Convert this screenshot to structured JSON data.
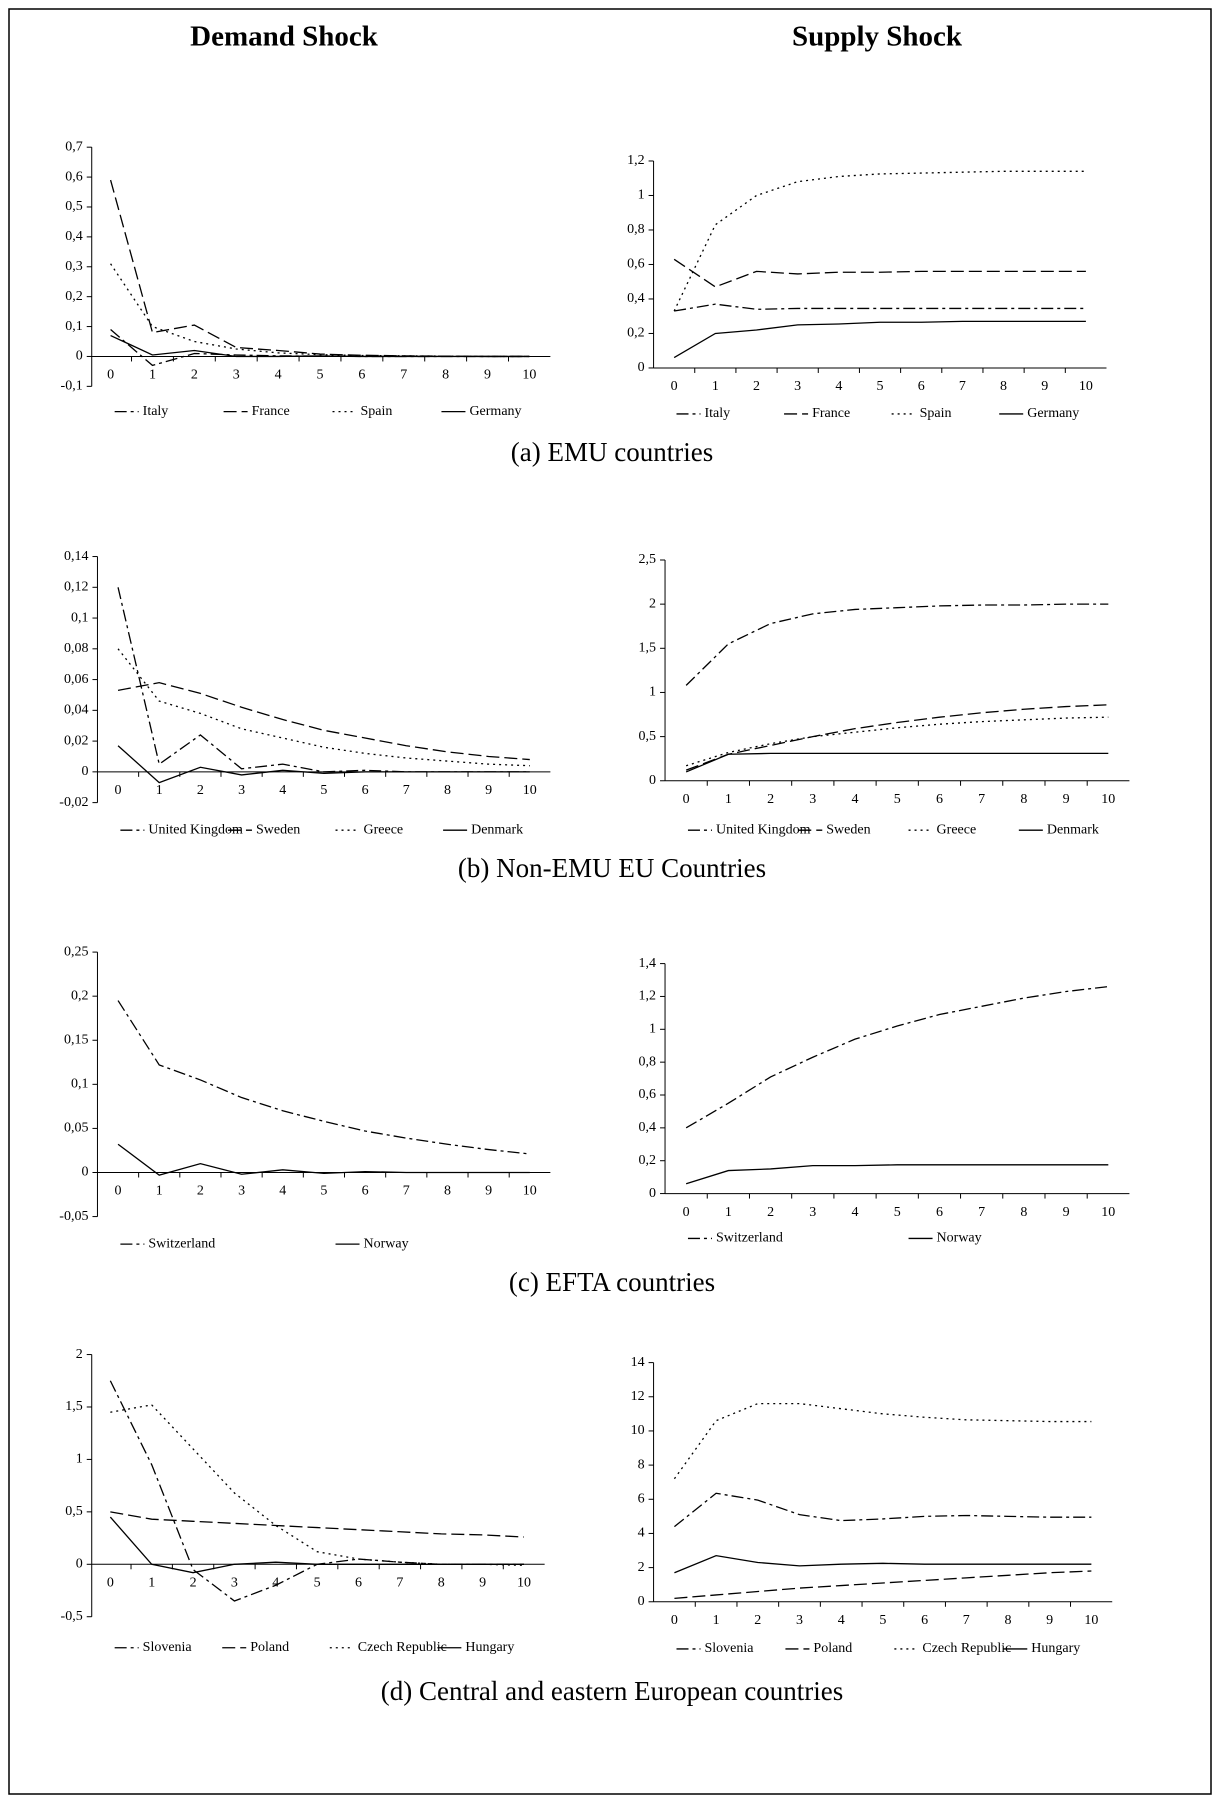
{
  "headers": [
    "Demand Shock",
    "Supply Shock"
  ],
  "captions": [
    "(a) EMU countries",
    "(b) Non-EMU EU Countries",
    "(c) EFTA countries",
    "(d) Central and eastern European countries"
  ],
  "chart_data": [
    {
      "type": "line",
      "x": [
        0,
        1,
        2,
        3,
        4,
        5,
        6,
        7,
        8,
        9,
        10
      ],
      "xlim": [
        -0.45,
        10.5
      ],
      "xticks": [
        0,
        1,
        2,
        3,
        4,
        5,
        6,
        7,
        8,
        9,
        10
      ],
      "ylim": [
        -0.1,
        0.7
      ],
      "yticks": [
        {
          "value": -0.1,
          "label": "-0,1"
        },
        0,
        {
          "value": 0.1,
          "label": "0,1"
        },
        {
          "value": 0.2,
          "label": "0,2"
        },
        {
          "value": 0.3,
          "label": "0,3"
        },
        {
          "value": 0.4,
          "label": "0,4"
        },
        {
          "value": 0.5,
          "label": "0,5"
        },
        {
          "value": 0.6,
          "label": "0,6"
        },
        {
          "value": 0.7,
          "label": "0,7"
        }
      ],
      "series": [
        {
          "name": "Italy",
          "color": "#000000",
          "style": "dash-dot",
          "values": [
            0.09,
            -0.03,
            0.01,
            0.005,
            0.002,
            0.001,
            0,
            0,
            0,
            0,
            0
          ]
        },
        {
          "name": "France",
          "color": "#000000",
          "style": "dashed",
          "values": [
            0.59,
            0.08,
            0.105,
            0.03,
            0.02,
            0.008,
            0.004,
            0.002,
            0.001,
            0,
            0
          ]
        },
        {
          "name": "Spain",
          "color": "#000000",
          "style": "dotted",
          "values": [
            0.31,
            0.1,
            0.05,
            0.025,
            0.012,
            0.006,
            0.003,
            0.002,
            0.001,
            0,
            0
          ]
        },
        {
          "name": "Germany",
          "color": "#000000",
          "style": "solid",
          "values": [
            0.07,
            0.005,
            0.02,
            0.0,
            0.0,
            0.002,
            0,
            0,
            0,
            0,
            0
          ]
        }
      ]
    },
    {
      "type": "line",
      "x": [
        0,
        1,
        2,
        3,
        4,
        5,
        6,
        7,
        8,
        9,
        10
      ],
      "xlim": [
        -0.5,
        10.5
      ],
      "xticks": [
        0,
        1,
        2,
        3,
        4,
        5,
        6,
        7,
        8,
        9,
        10
      ],
      "ylim": [
        0,
        1.2
      ],
      "yticks": [
        0,
        {
          "value": 0.2,
          "label": "0,2"
        },
        {
          "value": 0.4,
          "label": "0,4"
        },
        {
          "value": 0.6,
          "label": "0,6"
        },
        {
          "value": 0.8,
          "label": "0,8"
        },
        1,
        {
          "value": 1.2,
          "label": "1,2"
        }
      ],
      "series": [
        {
          "name": "Italy",
          "color": "#000000",
          "style": "dash-dot",
          "values": [
            0.33,
            0.37,
            0.34,
            0.345,
            0.345,
            0.345,
            0.345,
            0.345,
            0.345,
            0.345,
            0.345
          ]
        },
        {
          "name": "France",
          "color": "#000000",
          "style": "dashed",
          "values": [
            0.63,
            0.47,
            0.56,
            0.545,
            0.555,
            0.555,
            0.56,
            0.56,
            0.56,
            0.56,
            0.56
          ]
        },
        {
          "name": "Spain",
          "color": "#000000",
          "style": "dotted",
          "values": [
            0.33,
            0.83,
            1.0,
            1.08,
            1.11,
            1.125,
            1.13,
            1.135,
            1.14,
            1.14,
            1.14
          ]
        },
        {
          "name": "Germany",
          "color": "#000000",
          "style": "solid",
          "values": [
            0.06,
            0.2,
            0.22,
            0.25,
            0.255,
            0.265,
            0.265,
            0.27,
            0.27,
            0.27,
            0.27
          ]
        }
      ]
    },
    {
      "type": "line",
      "x": [
        0,
        1,
        2,
        3,
        4,
        5,
        6,
        7,
        8,
        9,
        10
      ],
      "xlim": [
        -0.5,
        10.5
      ],
      "xticks": [
        0,
        1,
        2,
        3,
        4,
        5,
        6,
        7,
        8,
        9,
        10
      ],
      "ylim": [
        -0.02,
        0.14
      ],
      "yticks": [
        {
          "value": -0.02,
          "label": "-0,02"
        },
        0,
        {
          "value": 0.02,
          "label": "0,02"
        },
        {
          "value": 0.04,
          "label": "0,04"
        },
        {
          "value": 0.06,
          "label": "0,06"
        },
        {
          "value": 0.08,
          "label": "0,08"
        },
        {
          "value": 0.1,
          "label": "0,1"
        },
        {
          "value": 0.12,
          "label": "0,12"
        },
        {
          "value": 0.14,
          "label": "0,14"
        }
      ],
      "series": [
        {
          "name": "United Kingdom",
          "color": "#000000",
          "style": "dash-dot",
          "values": [
            0.12,
            0.005,
            0.024,
            0.002,
            0.005,
            0.0,
            0.001,
            0,
            0,
            0,
            0
          ]
        },
        {
          "name": "Sweden",
          "color": "#000000",
          "style": "dashed",
          "values": [
            0.053,
            0.058,
            0.051,
            0.042,
            0.034,
            0.027,
            0.022,
            0.017,
            0.013,
            0.01,
            0.008
          ]
        },
        {
          "name": "Greece",
          "color": "#000000",
          "style": "dotted",
          "values": [
            0.08,
            0.046,
            0.038,
            0.028,
            0.022,
            0.016,
            0.012,
            0.009,
            0.007,
            0.005,
            0.004
          ]
        },
        {
          "name": "Denmark",
          "color": "#000000",
          "style": "solid",
          "values": [
            0.017,
            -0.007,
            0.003,
            -0.002,
            0.001,
            -0.001,
            0,
            0,
            0,
            0,
            0
          ]
        }
      ]
    },
    {
      "type": "line",
      "x": [
        0,
        1,
        2,
        3,
        4,
        5,
        6,
        7,
        8,
        9,
        10
      ],
      "xlim": [
        -0.5,
        10.5
      ],
      "xticks": [
        0,
        1,
        2,
        3,
        4,
        5,
        6,
        7,
        8,
        9,
        10
      ],
      "ylim": [
        0,
        2.5
      ],
      "yticks": [
        0,
        {
          "value": 0.5,
          "label": "0,5"
        },
        1,
        {
          "value": 1.5,
          "label": "1,5"
        },
        2,
        {
          "value": 2.5,
          "label": "2,5"
        }
      ],
      "series": [
        {
          "name": "United Kingdom",
          "color": "#000000",
          "style": "dash-dot",
          "values": [
            1.08,
            1.55,
            1.78,
            1.89,
            1.94,
            1.96,
            1.98,
            1.99,
            1.99,
            2.0,
            2.0
          ]
        },
        {
          "name": "Sweden",
          "color": "#000000",
          "style": "dashed",
          "values": [
            0.12,
            0.3,
            0.4,
            0.5,
            0.59,
            0.66,
            0.72,
            0.77,
            0.81,
            0.84,
            0.86
          ]
        },
        {
          "name": "Greece",
          "color": "#000000",
          "style": "dotted",
          "values": [
            0.17,
            0.32,
            0.42,
            0.5,
            0.55,
            0.6,
            0.64,
            0.67,
            0.69,
            0.71,
            0.72
          ]
        },
        {
          "name": "Denmark",
          "color": "#000000",
          "style": "solid",
          "values": [
            0.1,
            0.3,
            0.31,
            0.31,
            0.31,
            0.31,
            0.31,
            0.31,
            0.31,
            0.31,
            0.31
          ]
        }
      ]
    },
    {
      "type": "line",
      "x": [
        0,
        1,
        2,
        3,
        4,
        5,
        6,
        7,
        8,
        9,
        10
      ],
      "xlim": [
        -0.5,
        10.5
      ],
      "xticks": [
        0,
        1,
        2,
        3,
        4,
        5,
        6,
        7,
        8,
        9,
        10
      ],
      "ylim": [
        -0.05,
        0.25
      ],
      "yticks": [
        {
          "value": -0.05,
          "label": "-0,05"
        },
        0,
        {
          "value": 0.05,
          "label": "0,05"
        },
        {
          "value": 0.1,
          "label": "0,1"
        },
        {
          "value": 0.15,
          "label": "0,15"
        },
        {
          "value": 0.2,
          "label": "0,2"
        },
        {
          "value": 0.25,
          "label": "0,25"
        }
      ],
      "series": [
        {
          "name": "Switzerland",
          "color": "#000000",
          "style": "dash-dot",
          "values": [
            0.195,
            0.122,
            0.105,
            0.085,
            0.07,
            0.058,
            0.047,
            0.039,
            0.032,
            0.026,
            0.021
          ]
        },
        {
          "name": "Norway",
          "color": "#000000",
          "style": "solid",
          "values": [
            0.032,
            -0.003,
            0.01,
            -0.002,
            0.003,
            -0.001,
            0.001,
            0,
            0,
            0,
            0
          ]
        }
      ]
    },
    {
      "type": "line",
      "x": [
        0,
        1,
        2,
        3,
        4,
        5,
        6,
        7,
        8,
        9,
        10
      ],
      "xlim": [
        -0.5,
        10.5
      ],
      "xticks": [
        0,
        1,
        2,
        3,
        4,
        5,
        6,
        7,
        8,
        9,
        10
      ],
      "ylim": [
        0,
        1.4
      ],
      "yticks": [
        0,
        {
          "value": 0.2,
          "label": "0,2"
        },
        {
          "value": 0.4,
          "label": "0,4"
        },
        {
          "value": 0.6,
          "label": "0,6"
        },
        {
          "value": 0.8,
          "label": "0,8"
        },
        1,
        {
          "value": 1.2,
          "label": "1,2"
        },
        {
          "value": 1.4,
          "label": "1,4"
        }
      ],
      "series": [
        {
          "name": "Switzerland",
          "color": "#000000",
          "style": "dash-dot",
          "values": [
            0.4,
            0.55,
            0.71,
            0.83,
            0.94,
            1.02,
            1.09,
            1.14,
            1.19,
            1.23,
            1.26
          ]
        },
        {
          "name": "Norway",
          "color": "#000000",
          "style": "solid",
          "values": [
            0.06,
            0.14,
            0.15,
            0.17,
            0.17,
            0.175,
            0.175,
            0.175,
            0.175,
            0.175,
            0.175
          ]
        }
      ]
    },
    {
      "type": "line",
      "x": [
        0,
        1,
        2,
        3,
        4,
        5,
        6,
        7,
        8,
        9,
        10
      ],
      "xlim": [
        -0.45,
        10.5
      ],
      "xticks": [
        0,
        1,
        2,
        3,
        4,
        5,
        6,
        7,
        8,
        9,
        10
      ],
      "ylim": [
        -0.5,
        2
      ],
      "yticks": [
        {
          "value": -0.5,
          "label": "-0,5"
        },
        0,
        {
          "value": 0.5,
          "label": "0,5"
        },
        1,
        {
          "value": 1.5,
          "label": "1,5"
        },
        2
      ],
      "series": [
        {
          "name": "Slovenia",
          "color": "#000000",
          "style": "dash-dot",
          "values": [
            1.75,
            0.95,
            -0.05,
            -0.35,
            -0.2,
            0.0,
            0.05,
            0.02,
            0,
            0,
            0
          ]
        },
        {
          "name": "Poland",
          "color": "#000000",
          "style": "dashed",
          "values": [
            0.5,
            0.43,
            0.41,
            0.39,
            0.37,
            0.35,
            0.33,
            0.31,
            0.29,
            0.28,
            0.26
          ]
        },
        {
          "name": "Czech Republic",
          "color": "#000000",
          "style": "dotted",
          "values": [
            1.45,
            1.52,
            1.1,
            0.68,
            0.37,
            0.12,
            0.05,
            0.02,
            0,
            0,
            -0.01
          ]
        },
        {
          "name": "Hungary",
          "color": "#000000",
          "style": "solid",
          "values": [
            0.45,
            0.0,
            -0.08,
            0.0,
            0.02,
            0.0,
            0.0,
            0,
            0,
            0,
            0
          ]
        }
      ]
    },
    {
      "type": "line",
      "x": [
        0,
        1,
        2,
        3,
        4,
        5,
        6,
        7,
        8,
        9,
        10
      ],
      "xlim": [
        -0.5,
        10.5
      ],
      "xticks": [
        0,
        1,
        2,
        3,
        4,
        5,
        6,
        7,
        8,
        9,
        10
      ],
      "ylim": [
        0,
        14
      ],
      "yticks": [
        0,
        2,
        4,
        6,
        8,
        10,
        12,
        14
      ],
      "series": [
        {
          "name": "Slovenia",
          "color": "#000000",
          "style": "dash-dot",
          "values": [
            4.4,
            6.35,
            5.95,
            5.1,
            4.75,
            4.85,
            5.0,
            5.05,
            5.0,
            4.95,
            4.95
          ]
        },
        {
          "name": "Poland",
          "color": "#000000",
          "style": "dashed",
          "values": [
            0.2,
            0.4,
            0.6,
            0.8,
            0.95,
            1.1,
            1.25,
            1.4,
            1.55,
            1.7,
            1.8
          ]
        },
        {
          "name": "Czech Republic",
          "color": "#000000",
          "style": "dotted",
          "values": [
            7.2,
            10.6,
            11.6,
            11.6,
            11.3,
            11.0,
            10.8,
            10.65,
            10.6,
            10.55,
            10.55
          ]
        },
        {
          "name": "Hungary",
          "color": "#000000",
          "style": "solid",
          "values": [
            1.7,
            2.7,
            2.3,
            2.1,
            2.2,
            2.25,
            2.2,
            2.2,
            2.2,
            2.2,
            2.2
          ]
        }
      ]
    }
  ]
}
